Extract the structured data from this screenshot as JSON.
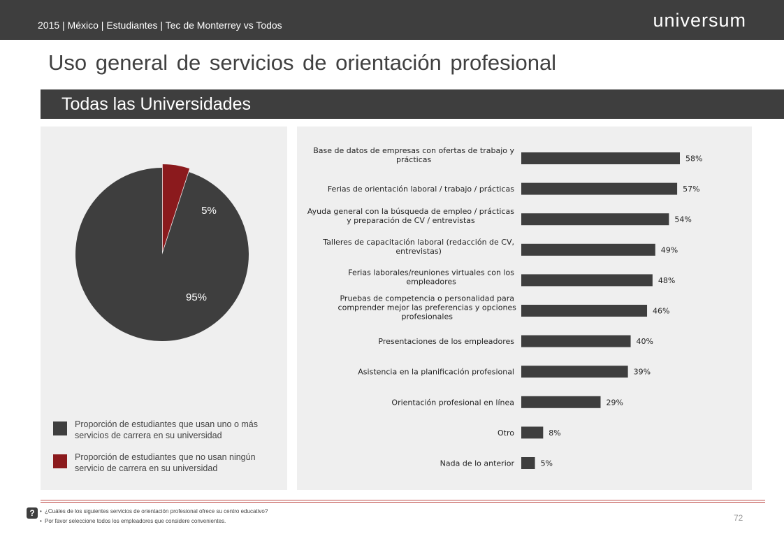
{
  "header": {
    "subtitle": "2015 | México | Estudiantes | Tec de Monterrey vs Todos",
    "brand": "universum"
  },
  "page_title": "Uso general de servicios de orientación profesional",
  "section_title": "Todas las Universidades",
  "colors": {
    "dark": "#3e3e3e",
    "red": "#8b1a1d",
    "panel": "#efefef",
    "rule": "#c0504d"
  },
  "legend": [
    {
      "label": "Proporción de estudiantes que usan uno o más servicios de carrera en su universidad",
      "color": "#3e3e3e"
    },
    {
      "label": "Proporción de estudiantes que no usan ningún servicio de carrera en su universidad",
      "color": "#8b1a1d"
    }
  ],
  "chart_data": [
    {
      "type": "pie",
      "categories": [
        "Proporción de estudiantes que usan uno o más servicios de carrera en su universidad",
        "Proporción de estudiantes que no usan ningún servicio de carrera en su universidad"
      ],
      "values": [
        95,
        5
      ],
      "labels": [
        "95%",
        "5%"
      ],
      "colors": [
        "#3e3e3e",
        "#8b1a1d"
      ],
      "legend": "bottom"
    },
    {
      "type": "bar",
      "orientation": "horizontal",
      "categories": [
        "Base de datos de empresas con ofertas de trabajo y prácticas",
        "Ferias de orientación laboral / trabajo / prácticas",
        "Ayuda general con la búsqueda de empleo / prácticas y preparación de CV / entrevistas",
        "Talleres de capacitación laboral (redacción de CV, entrevistas)",
        "Ferias laborales/reuniones virtuales con los empleadores",
        "Pruebas de competencia o personalidad para comprender mejor las preferencias y opciones profesionales",
        "Presentaciones de los empleadores",
        "Asistencia en la planificación profesional",
        "Orientación profesional en línea",
        "Otro",
        "Nada de lo anterior"
      ],
      "category_lines": [
        [
          "Base de datos de empresas con ofertas de trabajo y",
          "prácticas"
        ],
        [
          "Ferias de orientación laboral / trabajo / prácticas"
        ],
        [
          "Ayuda general con la búsqueda de empleo / prácticas",
          "y preparación de CV / entrevistas"
        ],
        [
          "Talleres de capacitación laboral (redacción de CV,",
          "entrevistas)"
        ],
        [
          "Ferias laborales/reuniones virtuales con los",
          "empleadores"
        ],
        [
          "Pruebas de competencia o personalidad para",
          "comprender mejor las preferencias y opciones",
          "profesionales"
        ],
        [
          "Presentaciones de los empleadores"
        ],
        [
          "Asistencia en la planificación profesional"
        ],
        [
          "Orientación profesional en línea"
        ],
        [
          "Otro"
        ],
        [
          "Nada de lo anterior"
        ]
      ],
      "values": [
        58,
        57,
        54,
        49,
        48,
        46,
        40,
        39,
        29,
        8,
        5
      ],
      "value_labels": [
        "58%",
        "57%",
        "54%",
        "49%",
        "48%",
        "46%",
        "40%",
        "39%",
        "29%",
        "8%",
        "5%"
      ],
      "color": "#3e3e3e",
      "grid": false
    }
  ],
  "footer": {
    "help_icon": "question-icon",
    "help_glyph": "?",
    "notes": [
      "¿Cuáles de los siguientes servicios de orientación profesional ofrece su centro educativo?",
      "Por favor seleccione todos los empleadores que considere convenientes."
    ],
    "page_number": "72"
  }
}
